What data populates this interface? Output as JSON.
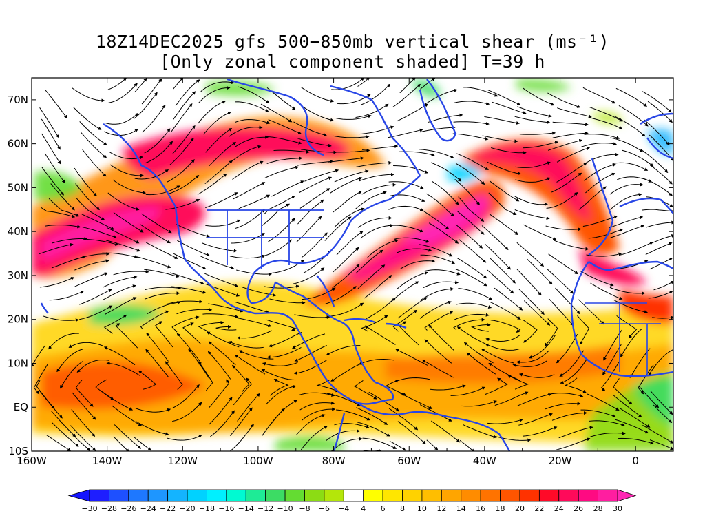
{
  "title": {
    "line1": "18Z14DEC2025 gfs 500−850mb vertical shear (ms⁻¹)",
    "line2": "[Only zonal component shaded] T=39 h"
  },
  "axes": {
    "lon_ticks": [
      "160W",
      "140W",
      "120W",
      "100W",
      "80W",
      "60W",
      "40W",
      "20W",
      "0"
    ],
    "lon_values": [
      -160,
      -140,
      -120,
      -100,
      -80,
      -60,
      -40,
      -20,
      0
    ],
    "lat_ticks": [
      "70N",
      "60N",
      "50N",
      "40N",
      "30N",
      "20N",
      "10N",
      "EQ",
      "10S"
    ],
    "lat_values": [
      70,
      60,
      50,
      40,
      30,
      20,
      10,
      0,
      -10
    ],
    "lon_range": [
      -160,
      10
    ],
    "lat_range": [
      -10,
      75
    ]
  },
  "colorbar": {
    "labels": [
      "-30",
      "-28",
      "-26",
      "-24",
      "-22",
      "-20",
      "-18",
      "-16",
      "-14",
      "-12",
      "-10",
      "-8",
      "-6",
      "-4",
      "4",
      "6",
      "8",
      "10",
      "12",
      "14",
      "16",
      "18",
      "20",
      "22",
      "24",
      "26",
      "28",
      "30"
    ],
    "colors": [
      "#1e1eff",
      "#1e50ff",
      "#1e78ff",
      "#1e96ff",
      "#14b4ff",
      "#00d2ff",
      "#00f0ff",
      "#00fad2",
      "#1eeb96",
      "#3cdc64",
      "#64dc32",
      "#8cdc14",
      "#b4e60a",
      "#ffffff",
      "#ffff00",
      "#ffe600",
      "#ffd200",
      "#ffbe00",
      "#ffa500",
      "#ff8c00",
      "#ff7300",
      "#ff5500",
      "#ff3200",
      "#ff0a28",
      "#ff0a5a",
      "#ff0a82",
      "#ff1ea0"
    ],
    "under_color": "#1414ff",
    "over_color": "#ff28b4"
  },
  "colors": {
    "coast": "#2846e6",
    "streamline": "#000000"
  }
}
